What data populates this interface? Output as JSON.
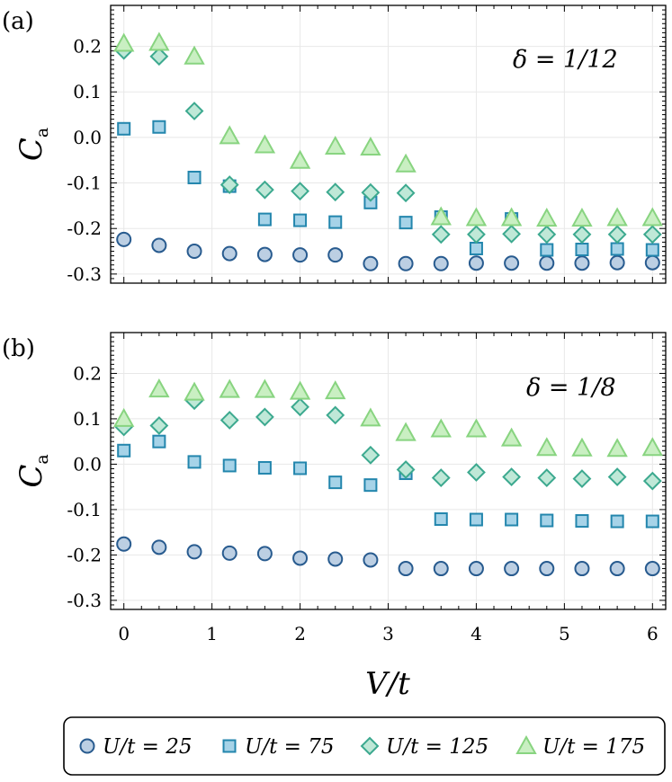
{
  "chart_data": [
    {
      "type": "scatter",
      "panel": "(a)",
      "annotation": "δ = 1/12",
      "ylabel": "C",
      "ylabel_sub": "a",
      "xlim": [
        -0.15,
        6.15
      ],
      "ylim": [
        -0.32,
        0.29
      ],
      "yticks": [
        0.2,
        0.1,
        0.0,
        -0.1,
        -0.2,
        -0.3
      ],
      "ytick_labels": [
        "0.2",
        "0.1",
        "0.0",
        "-0.1",
        "-0.2",
        "-0.3"
      ],
      "grid": true,
      "x": [
        0,
        0.4,
        0.8,
        1.2,
        1.6,
        2.0,
        2.4,
        2.8,
        3.2,
        3.6,
        4.0,
        4.4,
        4.8,
        5.2,
        5.6,
        6.0
      ],
      "series": [
        {
          "name": "U/t = 25",
          "marker": "circle",
          "values": [
            -0.224,
            -0.237,
            -0.25,
            -0.255,
            -0.257,
            -0.258,
            -0.258,
            -0.277,
            -0.277,
            -0.277,
            -0.276,
            -0.276,
            -0.276,
            -0.276,
            -0.275,
            -0.275
          ]
        },
        {
          "name": "U/t = 75",
          "marker": "square",
          "values": [
            0.019,
            0.023,
            -0.088,
            -0.107,
            -0.18,
            -0.182,
            -0.186,
            -0.143,
            -0.187,
            -0.175,
            -0.244,
            -0.179,
            -0.247,
            -0.246,
            -0.245,
            -0.247
          ]
        },
        {
          "name": "U/t = 125",
          "marker": "diamond",
          "values": [
            0.191,
            0.178,
            0.058,
            -0.104,
            -0.115,
            -0.118,
            -0.12,
            -0.121,
            -0.122,
            -0.213,
            -0.213,
            -0.212,
            -0.213,
            -0.213,
            -0.213,
            -0.213
          ]
        },
        {
          "name": "U/t = 175",
          "marker": "triangle",
          "values": [
            0.206,
            0.208,
            0.178,
            0.003,
            -0.017,
            -0.051,
            -0.02,
            -0.022,
            -0.059,
            -0.175,
            -0.177,
            -0.177,
            -0.178,
            -0.178,
            -0.177,
            -0.177
          ]
        }
      ]
    },
    {
      "type": "scatter",
      "panel": "(b)",
      "annotation": "δ = 1/8",
      "ylabel": "C",
      "ylabel_sub": "a",
      "xlabel": "V/t",
      "xlim": [
        -0.15,
        6.15
      ],
      "ylim": [
        -0.32,
        0.29
      ],
      "xticks": [
        0,
        1,
        2,
        3,
        4,
        5,
        6
      ],
      "xtick_labels": [
        "0",
        "1",
        "2",
        "3",
        "4",
        "5",
        "6"
      ],
      "yticks": [
        0.2,
        0.1,
        0.0,
        -0.1,
        -0.2,
        -0.3
      ],
      "ytick_labels": [
        "0.2",
        "0.1",
        "0.0",
        "-0.1",
        "-0.2",
        "-0.3"
      ],
      "grid": true,
      "x": [
        0,
        0.4,
        0.8,
        1.2,
        1.6,
        2.0,
        2.4,
        2.8,
        3.2,
        3.6,
        4.0,
        4.4,
        4.8,
        5.2,
        5.6,
        6.0
      ],
      "series": [
        {
          "name": "U/t = 25",
          "marker": "circle",
          "values": [
            -0.176,
            -0.183,
            -0.193,
            -0.196,
            -0.197,
            -0.207,
            -0.209,
            -0.211,
            -0.23,
            -0.23,
            -0.23,
            -0.23,
            -0.23,
            -0.23,
            -0.23,
            -0.23
          ]
        },
        {
          "name": "U/t = 75",
          "marker": "square",
          "values": [
            0.03,
            0.05,
            0.005,
            -0.003,
            -0.008,
            -0.009,
            -0.04,
            -0.046,
            -0.02,
            -0.121,
            -0.122,
            -0.122,
            -0.124,
            -0.125,
            -0.126,
            -0.126
          ]
        },
        {
          "name": "U/t = 125",
          "marker": "diamond",
          "values": [
            0.082,
            0.085,
            0.14,
            0.097,
            0.104,
            0.126,
            0.108,
            0.02,
            -0.012,
            -0.03,
            -0.018,
            -0.028,
            -0.03,
            -0.032,
            -0.028,
            -0.037
          ]
        },
        {
          "name": "U/t = 175",
          "marker": "triangle",
          "values": [
            0.1,
            0.165,
            0.158,
            0.164,
            0.164,
            0.16,
            0.161,
            0.101,
            0.069,
            0.077,
            0.077,
            0.057,
            0.036,
            0.035,
            0.034,
            0.036
          ]
        }
      ]
    }
  ],
  "legend": {
    "placement": "bottom",
    "entries": [
      "U/t = 25",
      "U/t = 75",
      "U/t = 125",
      "U/t = 175"
    ]
  },
  "colors": {
    "circle_fill": "#bccfe3",
    "circle_edge": "#285b8f",
    "square_fill": "#a6d3e8",
    "square_edge": "#2386ad",
    "diamond_fill": "#bfe8d7",
    "diamond_edge": "#3ca98f",
    "triangle_fill": "#c9efc2",
    "triangle_edge": "#88d480",
    "grid": "#e8e8e8",
    "axes": "#000000"
  }
}
